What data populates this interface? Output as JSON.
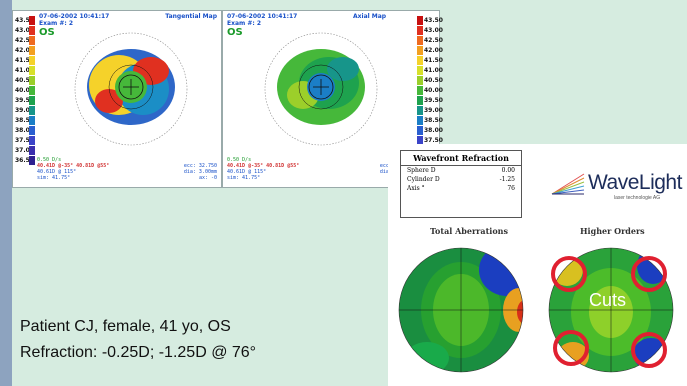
{
  "topo_left": {
    "date": "07-06-2002 10:41:17",
    "exam": "Exam #: 2",
    "eye": "OS",
    "map_type": "Tangential Map",
    "scale_label": "0.50 D/s",
    "k_values": "40.41D @-35° 40.81D @55°",
    "k_avg": "40.61D @ 115°",
    "sim_k": "sim: 41.75°",
    "stats": [
      "ecc: 32.750",
      "dia: 3.00mm",
      "ax: -0"
    ],
    "scale": [
      "43.50",
      "43.00",
      "42.50",
      "42.00",
      "41.50",
      "41.00",
      "40.50",
      "40.00",
      "39.50",
      "39.00",
      "38.50",
      "38.00",
      "37.50",
      "37.00",
      "36.50"
    ]
  },
  "topo_right": {
    "date": "07-06-2002 10:41:17",
    "exam": "Exam #: 2",
    "eye": "OS",
    "map_type": "Axial Map",
    "scale_label": "0.50 D/s",
    "k_values": "40.41D @-35° 40.81D @55°",
    "k_avg": "40.61D @ 115°",
    "sim_k": "sim: 41.75°",
    "stats": [
      "ecc: 32.750",
      "dia: 3.00mm",
      "ax: -0"
    ],
    "scale": [
      "43.50",
      "43.00",
      "42.50",
      "42.00",
      "41.50",
      "41.00",
      "40.50",
      "40.00",
      "39.50",
      "39.00",
      "38.50",
      "38.00",
      "37.50",
      "37.00",
      "36.50"
    ]
  },
  "scale_colors": [
    "#c81010",
    "#e03020",
    "#ef6a20",
    "#f3a020",
    "#f5d22a",
    "#d8e02a",
    "#9ccf2a",
    "#46b83a",
    "#1ea24e",
    "#17958a",
    "#1b7ec6",
    "#2a5fd0",
    "#3b44c8",
    "#3a2fae",
    "#2e2090"
  ],
  "wavefront": {
    "title": "Wavefront Refraction",
    "rows": [
      [
        "Sphere D",
        "0.00"
      ],
      [
        "Cylinder D",
        "-1.25"
      ],
      [
        "Axis °",
        "76"
      ]
    ]
  },
  "brand": {
    "name": "WaveLight",
    "sub": "laser technologie AG"
  },
  "total_aberrations": "Total Aberrations",
  "higher_orders": "Higher Orders",
  "cuts": "Cuts",
  "patient": {
    "line1": "Patient CJ, female, 41 yo, OS",
    "line2": "Refraction: -0.25D; -1.25D @ 76°"
  }
}
